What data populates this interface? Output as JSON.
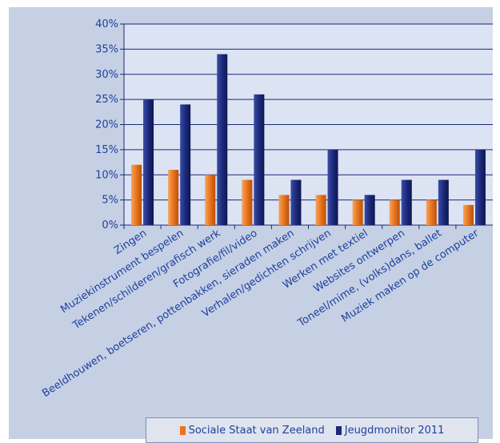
{
  "chart_data": {
    "type": "bar",
    "categories": [
      "Zingen",
      "Muziekinstrument bespelen",
      "Tekenen/schilderen/grafisch werk",
      "Fotografie/fil/video",
      "Beeldhouwen, boetseren, pottenbakken, sieraden maken",
      "Verhalen/gedichten schrijven",
      "Werken met textiel",
      "Websites ontwerpen",
      "Toneel/mime, (volks)dans, ballet",
      "Muziek maken op de computer"
    ],
    "series": [
      {
        "name": "Sociale Staat van Zeeland",
        "values": [
          12,
          11,
          10,
          9,
          6,
          6,
          5,
          5,
          5,
          4
        ],
        "color": "#e8741c"
      },
      {
        "name": "Jeugdmonitor 2011",
        "values": [
          25,
          24,
          34,
          26,
          9,
          15,
          6,
          9,
          9,
          15
        ],
        "color": "#1b2a7a"
      }
    ],
    "yticks": [
      "0%",
      "5%",
      "10%",
      "15%",
      "20%",
      "25%",
      "30%",
      "35%",
      "40%"
    ],
    "ylim": [
      0,
      40
    ],
    "grid": true,
    "legend_position": "bottom",
    "plot_background": "#dce3f3",
    "page_background": "#c5d0e4"
  }
}
